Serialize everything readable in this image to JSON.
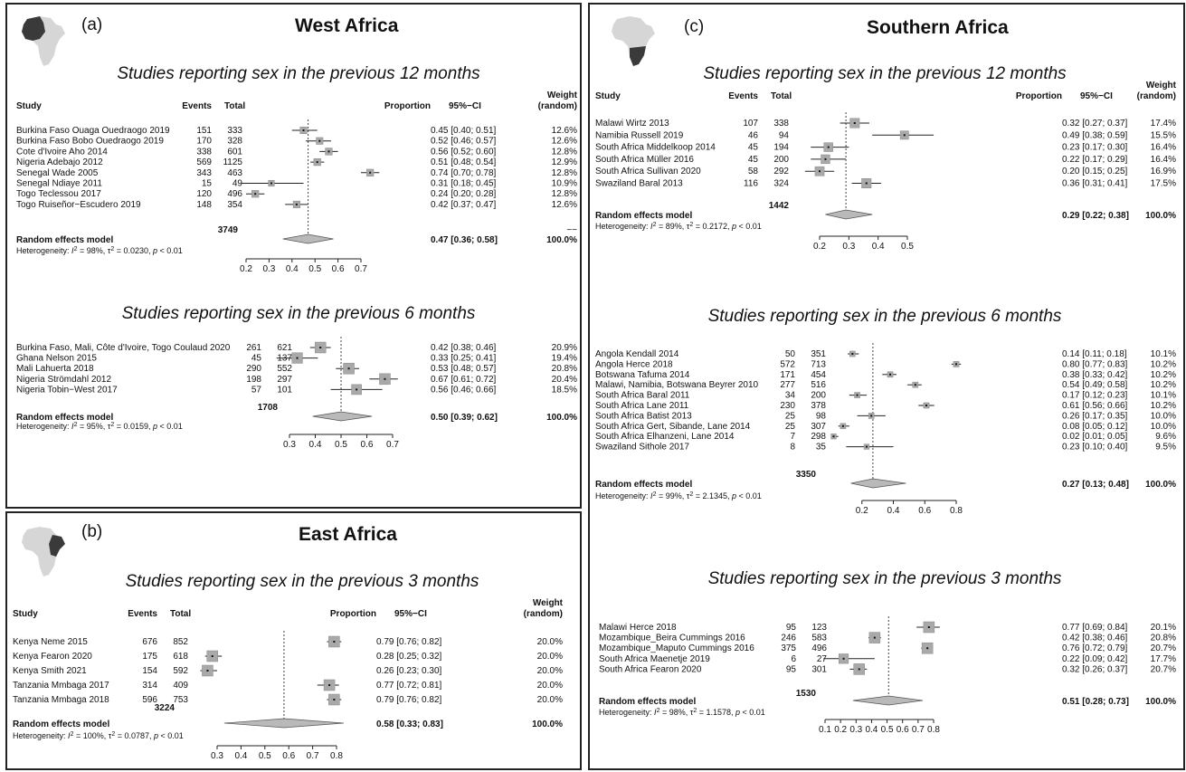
{
  "headers": {
    "study": "Study",
    "events": "Events",
    "total": "Total",
    "proportion": "Proportion",
    "ci": "95%−CI",
    "weight_line1": "Weight",
    "weight_line2": "(random)"
  },
  "panels": [
    {
      "label": "(a)",
      "title": "West Africa",
      "map_highlight": "west",
      "sections": [
        {
          "title": "Studies reporting sex in the previous 12 months",
          "show_headers": true,
          "studies": [
            {
              "name": "Burkina Faso Ouaga Ouedraogo 2019",
              "events": "151",
              "total": "333",
              "prop": 0.45,
              "lo": 0.4,
              "hi": 0.51,
              "text": "0.45 [0.40; 0.51]",
              "weight": "12.6%"
            },
            {
              "name": "Burkina Faso Bobo Ouedraogo 2019",
              "events": "170",
              "total": "328",
              "prop": 0.52,
              "lo": 0.46,
              "hi": 0.57,
              "text": "0.52 [0.46; 0.57]",
              "weight": "12.6%"
            },
            {
              "name": "Cote d'Ivoire Aho 2014",
              "events": "338",
              "total": "601",
              "prop": 0.56,
              "lo": 0.52,
              "hi": 0.6,
              "text": "0.56 [0.52; 0.60]",
              "weight": "12.8%"
            },
            {
              "name": "Nigeria Adebajo 2012",
              "events": "569",
              "total": "1125",
              "prop": 0.51,
              "lo": 0.48,
              "hi": 0.54,
              "text": "0.51 [0.48; 0.54]",
              "weight": "12.9%"
            },
            {
              "name": "Senegal Wade 2005",
              "events": "343",
              "total": "463",
              "prop": 0.74,
              "lo": 0.7,
              "hi": 0.78,
              "text": "0.74 [0.70; 0.78]",
              "weight": "12.8%"
            },
            {
              "name": "Senegal Ndiaye 2011",
              "events": "15",
              "total": "49",
              "prop": 0.31,
              "lo": 0.18,
              "hi": 0.45,
              "text": "0.31 [0.18; 0.45]",
              "weight": "10.9%"
            },
            {
              "name": "Togo Teclessou 2017",
              "events": "120",
              "total": "496",
              "prop": 0.24,
              "lo": 0.2,
              "hi": 0.28,
              "text": "0.24 [0.20; 0.28]",
              "weight": "12.8%"
            },
            {
              "name": "Togo Ruiseñor−Escudero 2019",
              "events": "148",
              "total": "354",
              "prop": 0.42,
              "lo": 0.37,
              "hi": 0.47,
              "text": "0.42 [0.37; 0.47]",
              "weight": "12.6%"
            }
          ],
          "total_n": "3749",
          "total_weight": "−−",
          "pooled": {
            "label": "Random effects model",
            "prop": 0.47,
            "lo": 0.36,
            "hi": 0.58,
            "text": "0.47 [0.36; 0.58]",
            "weight": "100.0%"
          },
          "heterogeneity": {
            "i2": "98%",
            "tau2": "0.0230",
            "p": "< 0.01"
          },
          "ticks": [
            "0.2",
            "0.3",
            "0.4",
            "0.5",
            "0.6",
            "0.7"
          ]
        },
        {
          "title": "Studies reporting sex in the previous 6 months",
          "show_headers": false,
          "studies": [
            {
              "name": "Burkina Faso, Mali, Côte d'Ivoire, Togo Coulaud 2020",
              "events": "261",
              "total": "621",
              "prop": 0.42,
              "lo": 0.38,
              "hi": 0.46,
              "text": "0.42 [0.38; 0.46]",
              "weight": "20.9%"
            },
            {
              "name": "Ghana Nelson 2015",
              "events": "45",
              "total": "137",
              "prop": 0.33,
              "lo": 0.25,
              "hi": 0.41,
              "text": "0.33 [0.25; 0.41]",
              "weight": "19.4%"
            },
            {
              "name": "Mali Lahuerta 2018",
              "events": "290",
              "total": "552",
              "prop": 0.53,
              "lo": 0.48,
              "hi": 0.57,
              "text": "0.53 [0.48; 0.57]",
              "weight": "20.8%"
            },
            {
              "name": "Nigeria Strömdahl 2012",
              "events": "198",
              "total": "297",
              "prop": 0.67,
              "lo": 0.61,
              "hi": 0.72,
              "text": "0.67 [0.61; 0.72]",
              "weight": "20.4%"
            },
            {
              "name": "Nigeria Tobin−West 2017",
              "events": "57",
              "total": "101",
              "prop": 0.56,
              "lo": 0.46,
              "hi": 0.66,
              "text": "0.56 [0.46; 0.66]",
              "weight": "18.5%"
            }
          ],
          "total_n": "1708",
          "total_weight": "",
          "pooled": {
            "label": "Random effects model",
            "prop": 0.5,
            "lo": 0.39,
            "hi": 0.62,
            "text": "0.50 [0.39; 0.62]",
            "weight": "100.0%"
          },
          "heterogeneity": {
            "i2": "95%",
            "tau2": "0.0159",
            "p": "< 0.01"
          },
          "ticks": [
            "0.3",
            "0.4",
            "0.5",
            "0.6",
            "0.7"
          ]
        }
      ]
    },
    {
      "label": "(b)",
      "title": "East Africa",
      "map_highlight": "east",
      "sections": [
        {
          "title": "Studies reporting sex in the previous 3 months",
          "show_headers": true,
          "studies": [
            {
              "name": "Kenya Neme 2015",
              "events": "676",
              "total": "852",
              "prop": 0.79,
              "lo": 0.76,
              "hi": 0.82,
              "text": "0.79 [0.76; 0.82]",
              "weight": "20.0%"
            },
            {
              "name": "Kenya Fearon 2020",
              "events": "175",
              "total": "618",
              "prop": 0.28,
              "lo": 0.25,
              "hi": 0.32,
              "text": "0.28 [0.25; 0.32]",
              "weight": "20.0%"
            },
            {
              "name": "Kenya Smith 2021",
              "events": "154",
              "total": "592",
              "prop": 0.26,
              "lo": 0.23,
              "hi": 0.3,
              "text": "0.26 [0.23; 0.30]",
              "weight": "20.0%"
            },
            {
              "name": "Tanzania Mmbaga 2017",
              "events": "314",
              "total": "409",
              "prop": 0.77,
              "lo": 0.72,
              "hi": 0.81,
              "text": "0.77 [0.72; 0.81]",
              "weight": "20.0%"
            },
            {
              "name": "Tanzania Mmbaga 2018",
              "events": "596",
              "total": "753",
              "prop": 0.79,
              "lo": 0.76,
              "hi": 0.82,
              "text": "0.79 [0.76; 0.82]",
              "weight": "20.0%"
            }
          ],
          "total_n": "3224",
          "total_weight": "",
          "pooled": {
            "label": "Random effects model",
            "prop": 0.58,
            "lo": 0.33,
            "hi": 0.83,
            "text": "0.58 [0.33; 0.83]",
            "weight": "100.0%"
          },
          "heterogeneity": {
            "i2": "100%",
            "tau2": "0.0787",
            "p": "< 0.01"
          },
          "ticks": [
            "0.3",
            "0.4",
            "0.5",
            "0.6",
            "0.7",
            "0.8"
          ]
        }
      ]
    },
    {
      "label": "(c)",
      "title": "Southern Africa",
      "map_highlight": "south",
      "sections": [
        {
          "title": "Studies reporting sex in the previous 12 months",
          "show_headers": true,
          "studies": [
            {
              "name": "Malawi Wirtz 2013",
              "events": "107",
              "total": "338",
              "prop": 0.32,
              "lo": 0.27,
              "hi": 0.37,
              "text": "0.32 [0.27; 0.37]",
              "weight": "17.4%"
            },
            {
              "name": "Namibia Russell 2019",
              "events": "46",
              "total": "94",
              "prop": 0.49,
              "lo": 0.38,
              "hi": 0.59,
              "text": "0.49 [0.38; 0.59]",
              "weight": "15.5%"
            },
            {
              "name": "South Africa Middelkoop 2014",
              "events": "45",
              "total": "194",
              "prop": 0.23,
              "lo": 0.17,
              "hi": 0.3,
              "text": "0.23 [0.17; 0.30]",
              "weight": "16.4%"
            },
            {
              "name": "South Africa Müller 2016",
              "events": "45",
              "total": "200",
              "prop": 0.22,
              "lo": 0.17,
              "hi": 0.29,
              "text": "0.22 [0.17; 0.29]",
              "weight": "16.4%"
            },
            {
              "name": "South Africa Sullivan 2020",
              "events": "58",
              "total": "292",
              "prop": 0.2,
              "lo": 0.15,
              "hi": 0.25,
              "text": "0.20 [0.15; 0.25]",
              "weight": "16.9%"
            },
            {
              "name": "Swaziland Baral 2013",
              "events": "116",
              "total": "324",
              "prop": 0.36,
              "lo": 0.31,
              "hi": 0.41,
              "text": "0.36 [0.31; 0.41]",
              "weight": "17.5%"
            }
          ],
          "total_n": "1442",
          "total_weight": "",
          "pooled": {
            "label": "Random effects model",
            "prop": 0.29,
            "lo": 0.22,
            "hi": 0.38,
            "text": "0.29 [0.22; 0.38]",
            "weight": "100.0%"
          },
          "heterogeneity": {
            "i2": "89%",
            "tau2": "0.2172",
            "p": "< 0.01"
          },
          "ticks": [
            "0.2",
            "0.3",
            "0.4",
            "0.5"
          ]
        },
        {
          "title": "Studies reporting sex in the previous 6 months",
          "show_headers": false,
          "studies": [
            {
              "name": "Angola Kendall 2014",
              "events": "50",
              "total": "351",
              "prop": 0.14,
              "lo": 0.11,
              "hi": 0.18,
              "text": "0.14 [0.11; 0.18]",
              "weight": "10.1%"
            },
            {
              "name": "Angola Herce 2018",
              "events": "572",
              "total": "713",
              "prop": 0.8,
              "lo": 0.77,
              "hi": 0.83,
              "text": "0.80 [0.77; 0.83]",
              "weight": "10.2%"
            },
            {
              "name": "Botswana Tafuma 2014",
              "events": "171",
              "total": "454",
              "prop": 0.38,
              "lo": 0.33,
              "hi": 0.42,
              "text": "0.38 [0.33; 0.42]",
              "weight": "10.2%"
            },
            {
              "name": "Malawi, Namibia, Botswana Beyrer 2010",
              "events": "277",
              "total": "516",
              "prop": 0.54,
              "lo": 0.49,
              "hi": 0.58,
              "text": "0.54 [0.49; 0.58]",
              "weight": "10.2%"
            },
            {
              "name": "South Africa Baral 2011",
              "events": "34",
              "total": "200",
              "prop": 0.17,
              "lo": 0.12,
              "hi": 0.23,
              "text": "0.17 [0.12; 0.23]",
              "weight": "10.1%"
            },
            {
              "name": "South Africa Lane 2011",
              "events": "230",
              "total": "378",
              "prop": 0.61,
              "lo": 0.56,
              "hi": 0.66,
              "text": "0.61 [0.56; 0.66]",
              "weight": "10.2%"
            },
            {
              "name": "South Africa Batist 2013",
              "events": "25",
              "total": "98",
              "prop": 0.26,
              "lo": 0.17,
              "hi": 0.35,
              "text": "0.26 [0.17; 0.35]",
              "weight": "10.0%"
            },
            {
              "name": "South Africa Gert, Sibande, Lane 2014",
              "events": "25",
              "total": "307",
              "prop": 0.08,
              "lo": 0.05,
              "hi": 0.12,
              "text": "0.08 [0.05; 0.12]",
              "weight": "10.0%"
            },
            {
              "name": "South Africa Elhanzeni, Lane 2014",
              "events": "7",
              "total": "298",
              "prop": 0.02,
              "lo": 0.01,
              "hi": 0.05,
              "text": "0.02 [0.01; 0.05]",
              "weight": "9.6%"
            },
            {
              "name": "Swaziland Sithole 2017",
              "events": "8",
              "total": "35",
              "prop": 0.23,
              "lo": 0.1,
              "hi": 0.4,
              "text": "0.23 [0.10; 0.40]",
              "weight": "9.5%"
            }
          ],
          "total_n": "3350",
          "total_weight": "",
          "pooled": {
            "label": "Random effects model",
            "prop": 0.27,
            "lo": 0.13,
            "hi": 0.48,
            "text": "0.27 [0.13; 0.48]",
            "weight": "100.0%"
          },
          "heterogeneity": {
            "i2": "99%",
            "tau2": "2.1345",
            "p": "< 0.01"
          },
          "ticks": [
            "0.2",
            "0.4",
            "0.6",
            "0.8"
          ]
        },
        {
          "title": "Studies reporting sex in the previous 3 months",
          "show_headers": false,
          "studies": [
            {
              "name": "Malawi Herce 2018",
              "events": "95",
              "total": "123",
              "prop": 0.77,
              "lo": 0.69,
              "hi": 0.84,
              "text": "0.77 [0.69; 0.84]",
              "weight": "20.1%"
            },
            {
              "name": "Mozambique_Beira Cummings 2016",
              "events": "246",
              "total": "583",
              "prop": 0.42,
              "lo": 0.38,
              "hi": 0.46,
              "text": "0.42 [0.38; 0.46]",
              "weight": "20.8%"
            },
            {
              "name": "Mozambique_Maputo Cummings 2016",
              "events": "375",
              "total": "496",
              "prop": 0.76,
              "lo": 0.72,
              "hi": 0.79,
              "text": "0.76 [0.72; 0.79]",
              "weight": "20.7%"
            },
            {
              "name": "South Africa Maenetje 2019",
              "events": "6",
              "total": "27",
              "prop": 0.22,
              "lo": 0.09,
              "hi": 0.42,
              "text": "0.22 [0.09; 0.42]",
              "weight": "17.7%"
            },
            {
              "name": "South Africa Fearon 2020",
              "events": "95",
              "total": "301",
              "prop": 0.32,
              "lo": 0.26,
              "hi": 0.37,
              "text": "0.32 [0.26; 0.37]",
              "weight": "20.7%"
            }
          ],
          "total_n": "1530",
          "total_weight": "",
          "pooled": {
            "label": "Random effects model",
            "prop": 0.51,
            "lo": 0.28,
            "hi": 0.73,
            "text": "0.51 [0.28; 0.73]",
            "weight": "100.0%"
          },
          "heterogeneity": {
            "i2": "98%",
            "tau2": "1.1578",
            "p": "< 0.01"
          },
          "ticks": [
            "0.1",
            "0.2",
            "0.3",
            "0.4",
            "0.5",
            "0.6",
            "0.7",
            "0.8"
          ]
        }
      ]
    }
  ],
  "chart_data": [
    {
      "type": "forest",
      "title": "West Africa — Studies reporting sex in the previous 12 months",
      "categories": [
        "Burkina Faso Ouaga Ouedraogo 2019",
        "Burkina Faso Bobo Ouedraogo 2019",
        "Cote d'Ivoire Aho 2014",
        "Nigeria Adebajo 2012",
        "Senegal Wade 2005",
        "Senegal Ndiaye 2011",
        "Togo Teclessou 2017",
        "Togo Ruiseñor−Escudero 2019"
      ],
      "values": [
        0.45,
        0.52,
        0.56,
        0.51,
        0.74,
        0.31,
        0.24,
        0.42
      ],
      "pooled": 0.47,
      "xlim": [
        0.2,
        0.7
      ]
    },
    {
      "type": "forest",
      "title": "West Africa — Studies reporting sex in the previous 6 months",
      "categories": [
        "Burkina Faso, Mali, Côte d'Ivoire, Togo Coulaud 2020",
        "Ghana Nelson 2015",
        "Mali Lahuerta 2018",
        "Nigeria Strömdahl 2012",
        "Nigeria Tobin−West 2017"
      ],
      "values": [
        0.42,
        0.33,
        0.53,
        0.67,
        0.56
      ],
      "pooled": 0.5,
      "xlim": [
        0.3,
        0.7
      ]
    },
    {
      "type": "forest",
      "title": "East Africa — Studies reporting sex in the previous 3 months",
      "categories": [
        "Kenya Neme 2015",
        "Kenya Fearon 2020",
        "Kenya Smith 2021",
        "Tanzania Mmbaga 2017",
        "Tanzania Mmbaga 2018"
      ],
      "values": [
        0.79,
        0.28,
        0.26,
        0.77,
        0.79
      ],
      "pooled": 0.58,
      "xlim": [
        0.3,
        0.8
      ]
    },
    {
      "type": "forest",
      "title": "Southern Africa — Studies reporting sex in the previous 12 months",
      "categories": [
        "Malawi Wirtz 2013",
        "Namibia Russell 2019",
        "South Africa Middelkoop 2014",
        "South Africa Müller 2016",
        "South Africa Sullivan 2020",
        "Swaziland Baral 2013"
      ],
      "values": [
        0.32,
        0.49,
        0.23,
        0.22,
        0.2,
        0.36
      ],
      "pooled": 0.29,
      "xlim": [
        0.2,
        0.5
      ]
    },
    {
      "type": "forest",
      "title": "Southern Africa — Studies reporting sex in the previous 6 months",
      "categories": [
        "Angola Kendall 2014",
        "Angola Herce 2018",
        "Botswana Tafuma 2014",
        "Malawi, Namibia, Botswana Beyrer 2010",
        "South Africa Baral 2011",
        "South Africa Lane 2011",
        "South Africa Batist 2013",
        "South Africa Gert, Sibande, Lane 2014",
        "South Africa Elhanzeni, Lane 2014",
        "Swaziland Sithole 2017"
      ],
      "values": [
        0.14,
        0.8,
        0.38,
        0.54,
        0.17,
        0.61,
        0.26,
        0.08,
        0.02,
        0.23
      ],
      "pooled": 0.27,
      "xlim": [
        0.2,
        0.8
      ]
    },
    {
      "type": "forest",
      "title": "Southern Africa — Studies reporting sex in the previous 3 months",
      "categories": [
        "Malawi Herce 2018",
        "Mozambique_Beira Cummings 2016",
        "Mozambique_Maputo Cummings 2016",
        "South Africa Maenetje 2019",
        "South Africa Fearon 2020"
      ],
      "values": [
        0.77,
        0.42,
        0.76,
        0.22,
        0.32
      ],
      "pooled": 0.51,
      "xlim": [
        0.1,
        0.8
      ]
    }
  ]
}
